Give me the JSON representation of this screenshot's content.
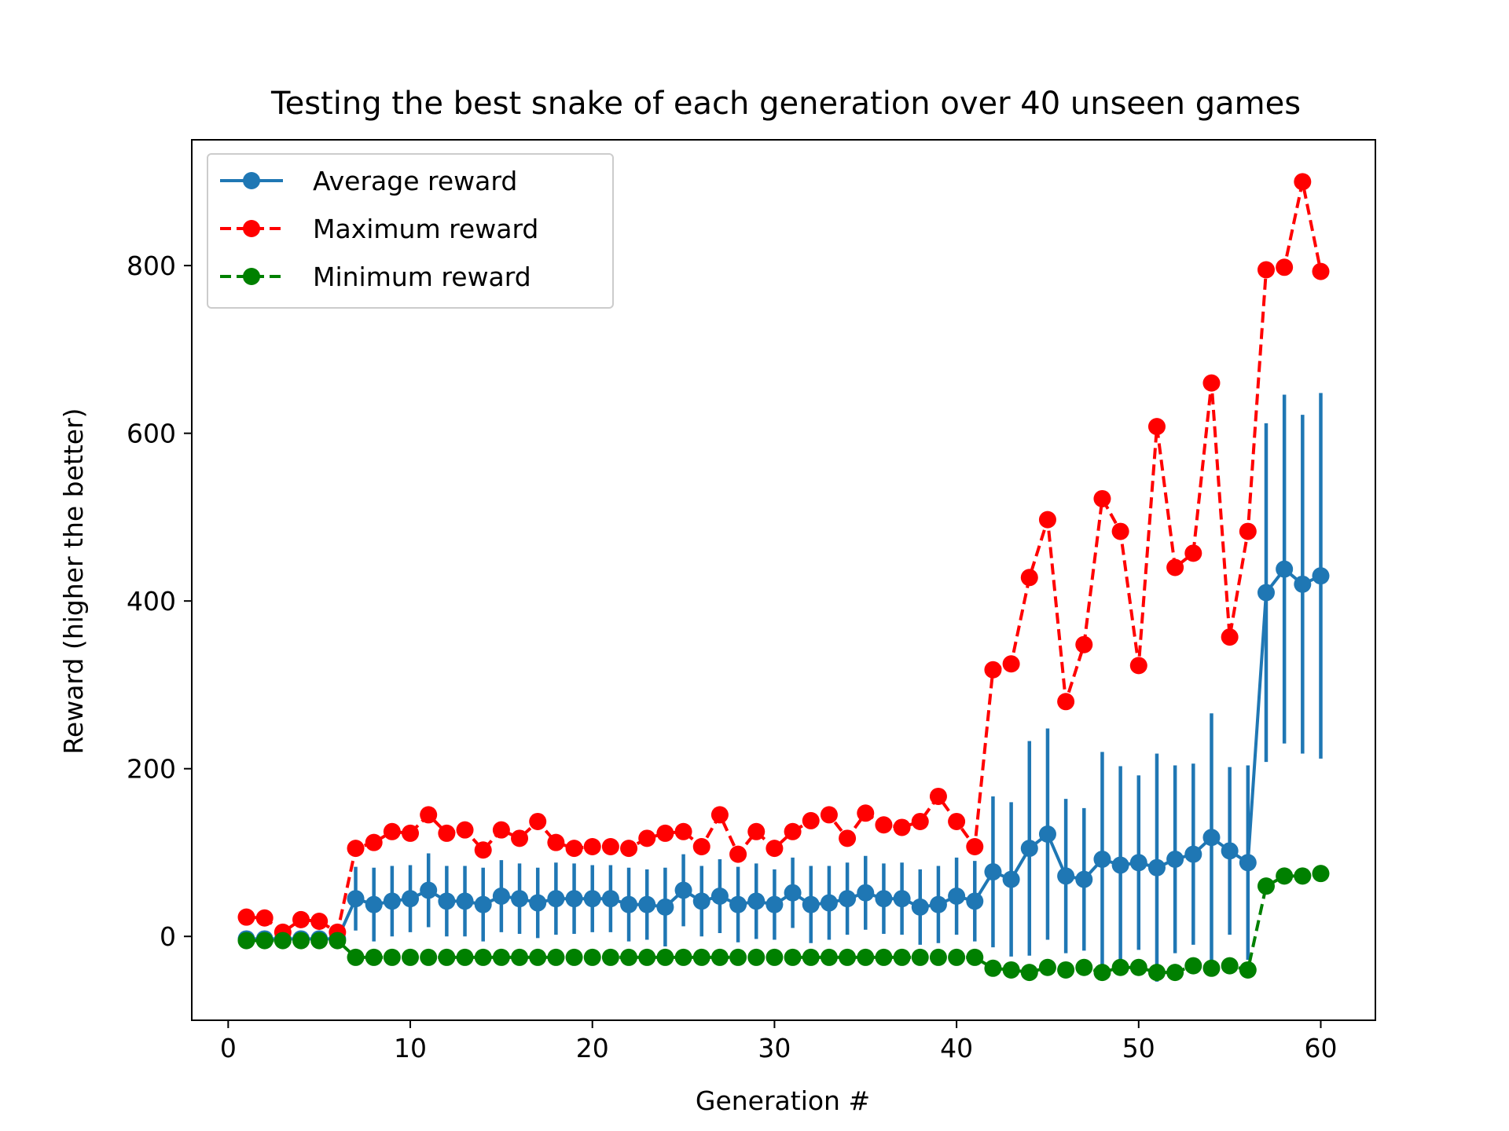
{
  "chart_data": {
    "type": "line",
    "title": "Testing the best snake of each generation over 40 unseen games",
    "xlabel": "Generation #",
    "ylabel": "Reward (higher the better)",
    "xlim": [
      -2,
      63
    ],
    "ylim": [
      -100,
      950
    ],
    "xticks": [
      0,
      10,
      20,
      30,
      40,
      50,
      60
    ],
    "yticks": [
      0,
      200,
      400,
      600,
      800
    ],
    "grid": false,
    "legend_position": "top-left",
    "x": [
      1,
      2,
      3,
      4,
      5,
      6,
      7,
      8,
      9,
      10,
      11,
      12,
      13,
      14,
      15,
      16,
      17,
      18,
      19,
      20,
      21,
      22,
      23,
      24,
      25,
      26,
      27,
      28,
      29,
      30,
      31,
      32,
      33,
      34,
      35,
      36,
      37,
      38,
      39,
      40,
      41,
      42,
      43,
      44,
      45,
      46,
      47,
      48,
      49,
      50,
      51,
      52,
      53,
      54,
      55,
      56,
      57,
      58,
      59,
      60
    ],
    "series": [
      {
        "name": "Average reward",
        "color": "#1f77b4",
        "style": "solid",
        "values": [
          -3,
          -3,
          -3,
          -3,
          -3,
          -3,
          45,
          38,
          42,
          45,
          55,
          42,
          42,
          38,
          48,
          45,
          40,
          45,
          45,
          45,
          45,
          38,
          38,
          35,
          55,
          42,
          48,
          38,
          42,
          38,
          52,
          38,
          40,
          45,
          52,
          45,
          45,
          35,
          38,
          48,
          42,
          77,
          68,
          105,
          122,
          72,
          68,
          92,
          85,
          88,
          82,
          92,
          98,
          118,
          102,
          88,
          410,
          438,
          420,
          430
        ],
        "errors": [
          3,
          3,
          3,
          3,
          3,
          3,
          38,
          44,
          42,
          40,
          44,
          42,
          42,
          44,
          43,
          42,
          42,
          43,
          42,
          40,
          40,
          44,
          42,
          47,
          43,
          42,
          44,
          45,
          45,
          42,
          42,
          46,
          44,
          43,
          44,
          42,
          43,
          45,
          46,
          46,
          48,
          90,
          92,
          128,
          126,
          92,
          85,
          128,
          118,
          104,
          136,
          112,
          108,
          148,
          100,
          116,
          202,
          208,
          202,
          218
        ]
      },
      {
        "name": "Maximum reward",
        "color": "#ff0000",
        "style": "dashed",
        "values": [
          23,
          22,
          5,
          20,
          18,
          5,
          105,
          112,
          125,
          123,
          145,
          123,
          127,
          103,
          127,
          117,
          137,
          112,
          105,
          107,
          107,
          105,
          117,
          123,
          125,
          107,
          145,
          98,
          125,
          105,
          125,
          138,
          145,
          117,
          147,
          133,
          130,
          137,
          167,
          137,
          107,
          318,
          325,
          428,
          497,
          280,
          348,
          522,
          483,
          323,
          608,
          440,
          457,
          660,
          357,
          483,
          795,
          798,
          900,
          793
        ]
      },
      {
        "name": "Minimum reward",
        "color": "#008000",
        "style": "dashed",
        "values": [
          -5,
          -5,
          -5,
          -5,
          -5,
          -5,
          -25,
          -25,
          -25,
          -25,
          -25,
          -25,
          -25,
          -25,
          -25,
          -25,
          -25,
          -25,
          -25,
          -25,
          -25,
          -25,
          -25,
          -25,
          -25,
          -25,
          -25,
          -25,
          -25,
          -25,
          -25,
          -25,
          -25,
          -25,
          -25,
          -25,
          -25,
          -25,
          -25,
          -25,
          -25,
          -38,
          -40,
          -43,
          -37,
          -40,
          -37,
          -43,
          -37,
          -37,
          -43,
          -43,
          -35,
          -38,
          -35,
          -40,
          60,
          72,
          72,
          75
        ]
      }
    ]
  }
}
